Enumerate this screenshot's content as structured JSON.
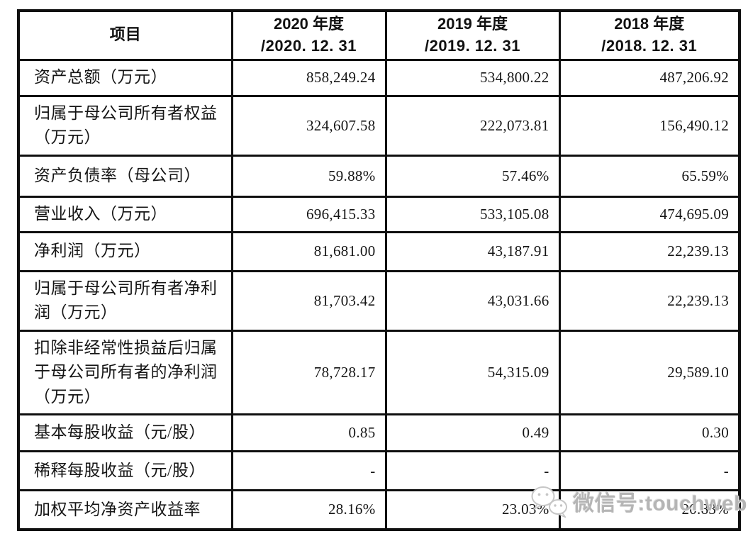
{
  "table": {
    "columns": [
      {
        "label": "项目",
        "sublabel": ""
      },
      {
        "label": "2020 年度",
        "sublabel": "/2020. 12. 31"
      },
      {
        "label": "2019 年度",
        "sublabel": "/2019. 12. 31"
      },
      {
        "label": "2018 年度",
        "sublabel": "/2018. 12. 31"
      }
    ],
    "rows": [
      {
        "label": "资产总额（万元）",
        "values": [
          "858,249.24",
          "534,800.22",
          "487,206.92"
        ]
      },
      {
        "label": "归属于母公司所有者权益\n（万元）",
        "values": [
          "324,607.58",
          "222,073.81",
          "156,490.12"
        ]
      },
      {
        "label": "资产负债率（母公司）",
        "values": [
          "59.88%",
          "57.46%",
          "65.59%"
        ]
      },
      {
        "label": "营业收入（万元）",
        "values": [
          "696,415.33",
          "533,105.08",
          "474,695.09"
        ]
      },
      {
        "label": "净利润（万元）",
        "values": [
          "81,681.00",
          "43,187.91",
          "22,239.13"
        ]
      },
      {
        "label": "归属于母公司所有者净利\n润（万元）",
        "values": [
          "81,703.42",
          "43,031.66",
          "22,239.13"
        ]
      },
      {
        "label": "扣除非经常性损益后归属\n于母公司所有者的净利润\n（万元）",
        "values": [
          "78,728.17",
          "54,315.09",
          "29,589.10"
        ]
      },
      {
        "label": "基本每股收益（元/股）",
        "values": [
          "0.85",
          "0.49",
          "0.30"
        ]
      },
      {
        "label": "稀释每股收益（元/股）",
        "values": [
          "-",
          "-",
          "-"
        ]
      },
      {
        "label": "加权平均净资产收益率",
        "values": [
          "28.16%",
          "23.03%",
          "20.83%"
        ]
      }
    ]
  },
  "watermark": {
    "icon": "wechat-icon",
    "text": "微信号:touchweb"
  },
  "colors": {
    "border": "#0f0f0f",
    "text": "#151515",
    "watermark_text": "#b5b5b5",
    "watermark_icon": "#c6c6c6"
  }
}
